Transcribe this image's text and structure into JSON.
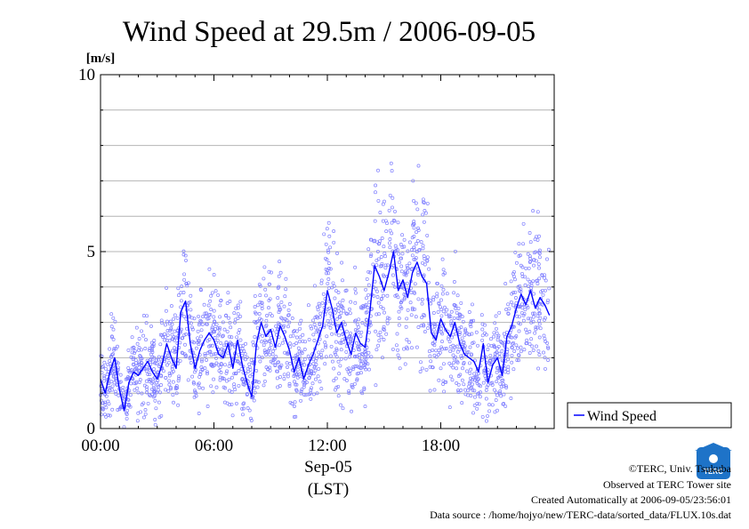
{
  "chart_data": {
    "type": "scatter",
    "title": "Wind Speed at 29.5m / 2006-09-05",
    "ylabel": "[m/s]",
    "xlabel_date": "Sep-05",
    "xlabel_tz": "(LST)",
    "xlim": [
      0,
      24
    ],
    "ylim": [
      0,
      10
    ],
    "x_ticks": [
      {
        "value": 0,
        "label": "00:00"
      },
      {
        "value": 6,
        "label": "06:00"
      },
      {
        "value": 12,
        "label": "12:00"
      },
      {
        "value": 18,
        "label": "18:00"
      }
    ],
    "y_ticks": [
      {
        "value": 0,
        "label": "0"
      },
      {
        "value": 5,
        "label": "5"
      },
      {
        "value": 10,
        "label": "10"
      }
    ],
    "grid": true,
    "legend_position": "right",
    "series": [
      {
        "name": "Wind Speed",
        "color": "#0000ff",
        "point_color": "#8080ff",
        "x": [
          0.0,
          0.25,
          0.5,
          0.75,
          1.0,
          1.25,
          1.5,
          1.75,
          2.0,
          2.25,
          2.5,
          2.75,
          3.0,
          3.25,
          3.5,
          3.75,
          4.0,
          4.25,
          4.5,
          4.75,
          5.0,
          5.25,
          5.5,
          5.75,
          6.0,
          6.25,
          6.5,
          6.75,
          7.0,
          7.25,
          7.5,
          7.75,
          8.0,
          8.25,
          8.5,
          8.75,
          9.0,
          9.25,
          9.5,
          9.75,
          10.0,
          10.25,
          10.5,
          10.75,
          11.0,
          11.25,
          11.5,
          11.75,
          12.0,
          12.25,
          12.5,
          12.75,
          13.0,
          13.25,
          13.5,
          13.75,
          14.0,
          14.25,
          14.5,
          14.75,
          15.0,
          15.25,
          15.5,
          15.75,
          16.0,
          16.25,
          16.5,
          16.75,
          17.0,
          17.25,
          17.5,
          17.75,
          18.0,
          18.25,
          18.5,
          18.75,
          19.0,
          19.25,
          19.5,
          19.75,
          20.0,
          20.25,
          20.5,
          20.75,
          21.0,
          21.25,
          21.5,
          21.75,
          22.0,
          22.25,
          22.5,
          22.75,
          23.0,
          23.25,
          23.5,
          23.75
        ],
        "y": [
          1.4,
          1.0,
          1.6,
          2.0,
          1.1,
          0.5,
          1.3,
          1.6,
          1.5,
          1.7,
          1.9,
          1.6,
          1.4,
          1.8,
          2.4,
          2.0,
          1.7,
          3.3,
          3.6,
          2.4,
          1.7,
          2.2,
          2.5,
          2.7,
          2.5,
          2.1,
          2.0,
          2.4,
          1.7,
          2.5,
          1.8,
          1.3,
          0.9,
          2.4,
          3.0,
          2.6,
          2.8,
          2.3,
          2.9,
          2.6,
          2.2,
          1.6,
          2.0,
          1.4,
          1.8,
          2.1,
          2.5,
          2.9,
          3.9,
          3.4,
          2.7,
          3.0,
          2.5,
          2.1,
          2.7,
          2.4,
          2.3,
          3.3,
          4.6,
          4.3,
          3.9,
          4.4,
          5.0,
          3.9,
          4.2,
          3.7,
          4.4,
          4.7,
          4.3,
          4.1,
          2.7,
          2.5,
          3.1,
          2.8,
          2.6,
          3.0,
          2.4,
          2.1,
          2.0,
          1.9,
          1.6,
          2.4,
          1.3,
          1.8,
          2.0,
          1.5,
          2.6,
          2.9,
          3.4,
          3.8,
          3.5,
          3.9,
          3.4,
          3.7,
          3.5,
          3.2
        ]
      }
    ]
  },
  "footer": {
    "copyright": "©TERC, Univ. Tsukuba",
    "observed": "Observed at TERC Tower site",
    "created": "Created Automatically at 2006-09-05/23:56:01",
    "source": "Data source : /home/hojyo/new/TERC-data/sorted_data/FLUX.10s.dat"
  },
  "logo": {
    "text": "TERC",
    "color": "#1e73c8"
  }
}
